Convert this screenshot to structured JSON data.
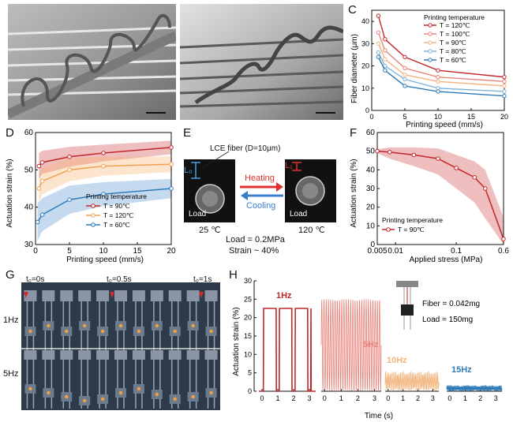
{
  "panels": {
    "A": "A",
    "B": "B",
    "C": "C",
    "D": "D",
    "E": "E",
    "F": "F",
    "G": "G",
    "H": "H"
  },
  "colors": {
    "red": "#c0282c",
    "salmon": "#e8837a",
    "peach": "#f2b47c",
    "orange": "#f0a050",
    "lightblue": "#7fb3d8",
    "blue": "#2f7bb8",
    "navy": "#1f5a8c"
  },
  "panel_C": {
    "chart_data": {
      "type": "line",
      "xlabel": "Printing speed (mm/s)",
      "ylabel": "Fiber diameter (μm)",
      "xlim": [
        0,
        20
      ],
      "ylim": [
        0,
        45
      ],
      "xticks": [
        "0",
        "5",
        "10",
        "15",
        "20"
      ],
      "yticks": [
        "0",
        "10",
        "20",
        "30",
        "40"
      ],
      "legend_title": "Printing temperature",
      "x": [
        1,
        2,
        5,
        10,
        20
      ],
      "series": [
        {
          "name": "T = 120℃",
          "color": "#c0282c",
          "values": [
            42.5,
            32,
            24,
            18,
            15
          ]
        },
        {
          "name": "T = 100℃",
          "color": "#e8837a",
          "values": [
            35,
            27,
            19,
            15,
            13
          ]
        },
        {
          "name": "T = 90℃",
          "color": "#f2b47c",
          "values": [
            30,
            23,
            16,
            13,
            11
          ]
        },
        {
          "name": "T = 80℃",
          "color": "#7fb3d8",
          "values": [
            26,
            20,
            14,
            10,
            8.5
          ]
        },
        {
          "name": "T = 60℃",
          "color": "#2f7bb8",
          "values": [
            24,
            18,
            11,
            8.5,
            6.5
          ]
        }
      ]
    }
  },
  "panel_D": {
    "chart_data": {
      "type": "line",
      "xlabel": "Printing speed (mm/s)",
      "ylabel": "Actuation strain (%)",
      "xlim": [
        0,
        20
      ],
      "ylim": [
        30,
        60
      ],
      "xticks": [
        "0",
        "5",
        "10",
        "15",
        "20"
      ],
      "yticks": [
        "30",
        "40",
        "50",
        "60"
      ],
      "legend_title": "Printing temperature",
      "series": [
        {
          "name": "T = 90℃",
          "color": "#c0282c",
          "x": [
            0.5,
            1,
            5,
            10,
            20
          ],
          "values": [
            51,
            52,
            53.5,
            54.5,
            56
          ]
        },
        {
          "name": "T = 120℃",
          "color": "#f0a050",
          "x": [
            0.5,
            1,
            5,
            10,
            20
          ],
          "values": [
            45,
            47,
            50,
            51,
            51.5
          ]
        },
        {
          "name": "T = 60℃",
          "color": "#2f7bb8",
          "x": [
            0.3,
            1,
            5,
            10,
            20
          ],
          "values": [
            36,
            38,
            42,
            43.5,
            45
          ]
        }
      ]
    }
  },
  "panel_E": {
    "fiber": "LCE fiber  (D=10μm)",
    "heating": "Heating",
    "cooling": "Cooling",
    "L0": "L₀",
    "L1": "L₁",
    "load": "Load",
    "t1": "25 ℃",
    "t2": "120 ℃",
    "load_text": "Load = 0.2MPa",
    "strain_text": "Strain ~ 40%"
  },
  "panel_F": {
    "chart_data": {
      "type": "line",
      "xlabel": "Applied stress (MPa)",
      "ylabel": "Actuation strain (%)",
      "xscale": "log",
      "xlim": [
        0.005,
        0.6
      ],
      "ylim": [
        0,
        60
      ],
      "xticks": [
        "0.005",
        "0.01",
        "0.1",
        "0.6"
      ],
      "yticks": [
        "0",
        "10",
        "20",
        "30",
        "40",
        "50",
        "60"
      ],
      "legend_title": "Printing temperature",
      "series": [
        {
          "name": "T = 90℃",
          "color": "#c0282c",
          "x": [
            0.005,
            0.008,
            0.02,
            0.05,
            0.1,
            0.2,
            0.3,
            0.6
          ],
          "values": [
            50,
            49.5,
            48,
            46,
            41,
            36,
            30,
            3
          ]
        }
      ]
    }
  },
  "panel_G": {
    "t0": "t₀=0s",
    "t05": "t₀=0.5s",
    "t1": "t₀=1s",
    "f1": "1Hz",
    "f5": "5Hz"
  },
  "panel_H": {
    "ylabel": "Actuation strain (%)",
    "xlabel": "Time (s)",
    "yticks": [
      "0",
      "5",
      "10",
      "15",
      "20",
      "25",
      "30"
    ],
    "xticks": [
      "0",
      "1",
      "2",
      "3"
    ],
    "f1": "1Hz",
    "f5": "5Hz",
    "f10": "10Hz",
    "f15": "15Hz",
    "fiber": "Fiber = 0.042mg",
    "load": "Load = 150mg"
  }
}
